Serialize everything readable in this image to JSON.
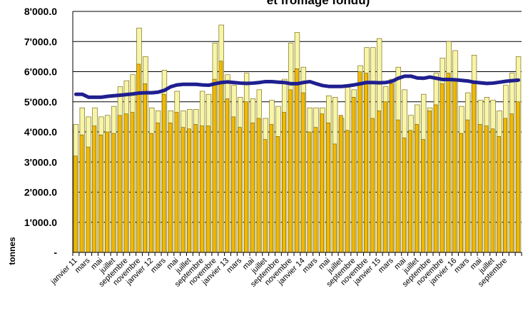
{
  "chart_data": {
    "type": "bar",
    "title": "et fromage fondu)",
    "ylabel": "tonnes",
    "xlabel": "",
    "ylim": [
      0,
      8000
    ],
    "yticks": [
      0,
      1000,
      2000,
      3000,
      4000,
      5000,
      6000,
      7000,
      8000
    ],
    "ytick_labels": [
      "-",
      "1'000.0",
      "2'000.0",
      "3'000.0",
      "4'000.0",
      "5'000.0",
      "6'000.0",
      "7'000.0",
      "8'000.0"
    ],
    "grid": true,
    "xtick_labels": [
      "janvier 11",
      "mars",
      "mai",
      "juillet",
      "septembre",
      "novembre",
      "janvier 12",
      "mars",
      "mai",
      "juillet",
      "septembre",
      "novembre",
      "janvier 13",
      "mars",
      "mai",
      "juillet",
      "septembre",
      "novembre",
      "janvier 14",
      "mars",
      "mai",
      "juillet",
      "septembre",
      "novembre",
      "janvier 15",
      "mars",
      "mai",
      "juillet",
      "septembre",
      "novembre",
      "janvier 16",
      "mars",
      "mai",
      "juillet",
      "septembre"
    ],
    "series": [
      {
        "type": "bar",
        "color": "#f7f5a8",
        "values": [
          4250,
          4800,
          4500,
          4800,
          4500,
          4550,
          4850,
          5500,
          5700,
          5900,
          7450,
          6500,
          4800,
          4700,
          6050,
          4700,
          5350,
          4700,
          4750,
          4750,
          5350,
          5250,
          6950,
          7550,
          5900,
          5550,
          5150,
          5950,
          5100,
          5400,
          4450,
          5050,
          4850,
          5750,
          6950,
          7300,
          6150,
          4800,
          4800,
          4800,
          5200,
          5150,
          4450,
          5500,
          5400,
          6200,
          6800,
          6800,
          7100,
          5500,
          5750,
          6150,
          5400,
          4550,
          4900,
          5250,
          4800,
          5950,
          6450,
          7000,
          6700,
          4850,
          5300,
          6550,
          5050,
          5150,
          5050,
          4700,
          5550,
          5950,
          6500
        ]
      },
      {
        "type": "bar",
        "color": "#f2b800",
        "values": [
          3200,
          3900,
          3500,
          4200,
          3900,
          4000,
          3950,
          4550,
          4600,
          4650,
          6250,
          5600,
          3950,
          4300,
          5250,
          4300,
          4650,
          4150,
          4100,
          4250,
          4200,
          4200,
          5750,
          6350,
          5100,
          4500,
          4150,
          5000,
          4300,
          4450,
          3750,
          4250,
          3850,
          4650,
          5400,
          6100,
          5300,
          4000,
          4150,
          4600,
          4300,
          3600,
          4550,
          4050,
          5150,
          6000,
          5950,
          4450,
          4700,
          5000,
          5600,
          4400,
          3800,
          4050,
          4250,
          3750,
          4700,
          4900,
          5600,
          5950,
          5700,
          3950,
          4400,
          5600,
          4250,
          4200,
          4100,
          3850,
          4450,
          4600,
          5000
        ]
      },
      {
        "type": "line",
        "color": "#1f1f8f",
        "values": [
          5250,
          5250,
          5150,
          5150,
          5150,
          5180,
          5200,
          5220,
          5240,
          5260,
          5290,
          5300,
          5300,
          5320,
          5380,
          5500,
          5560,
          5580,
          5580,
          5580,
          5560,
          5550,
          5600,
          5640,
          5660,
          5640,
          5620,
          5610,
          5620,
          5640,
          5670,
          5670,
          5650,
          5640,
          5600,
          5600,
          5640,
          5670,
          5600,
          5540,
          5510,
          5510,
          5510,
          5530,
          5560,
          5600,
          5640,
          5640,
          5630,
          5640,
          5680,
          5780,
          5850,
          5850,
          5790,
          5780,
          5820,
          5780,
          5740,
          5740,
          5730,
          5710,
          5690,
          5650,
          5630,
          5610,
          5620,
          5650,
          5680,
          5700,
          5720
        ]
      }
    ]
  }
}
